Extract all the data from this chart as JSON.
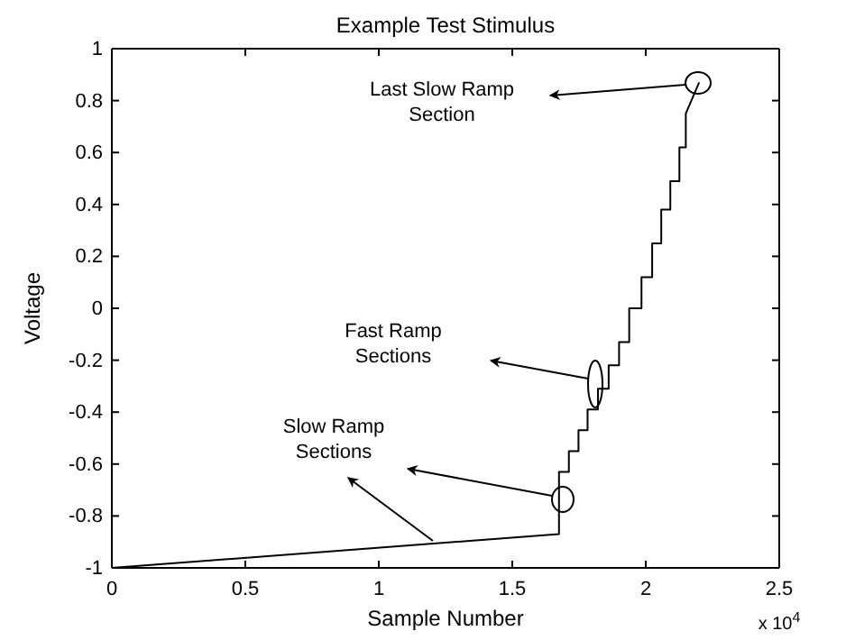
{
  "chart_data": {
    "type": "line",
    "title": "Example Test Stimulus",
    "xlabel": "Sample Number",
    "ylabel": "Voltage",
    "x": [
      0,
      1.675,
      1.675,
      1.712,
      1.712,
      1.748,
      1.748,
      1.782,
      1.782,
      1.821,
      1.821,
      1.861,
      1.861,
      1.9,
      1.9,
      1.938,
      1.938,
      1.984,
      1.984,
      2.024,
      2.024,
      2.058,
      2.058,
      2.092,
      2.092,
      2.126,
      2.126,
      2.15,
      2.15,
      2.2
    ],
    "series": [
      {
        "color": "#000000",
        "values": [
          -1,
          -0.87,
          -0.63,
          -0.63,
          -0.55,
          -0.55,
          -0.47,
          -0.47,
          -0.39,
          -0.39,
          -0.31,
          -0.31,
          -0.22,
          -0.22,
          -0.13,
          -0.13,
          0,
          0,
          0.12,
          0.12,
          0.25,
          0.25,
          0.38,
          0.38,
          0.49,
          0.49,
          0.62,
          0.62,
          0.75,
          0.87
        ]
      }
    ],
    "xlim": [
      0,
      2.5
    ],
    "ylim": [
      -1,
      1
    ],
    "xticks": [
      0,
      0.5,
      1,
      1.5,
      2,
      2.5
    ],
    "yticks": [
      -1,
      -0.8,
      -0.6,
      -0.4,
      -0.2,
      0,
      0.2,
      0.4,
      0.6,
      0.8,
      1
    ],
    "annotations": [
      "Last Slow Ramp\nSection",
      "Fast Ramp\nSections",
      "Slow Ramp\nSections",
      "x 10$^{4}$"
    ]
  }
}
